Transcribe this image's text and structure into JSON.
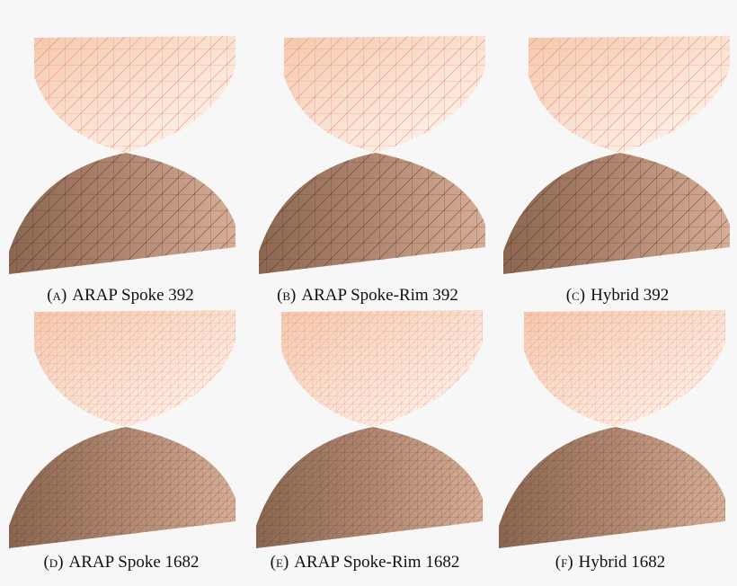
{
  "captions": [
    {
      "label": "(a)",
      "text": "ARAP Spoke 392"
    },
    {
      "label": "(b)",
      "text": "ARAP Spoke-Rim 392"
    },
    {
      "label": "(c)",
      "text": "Hybrid 392"
    },
    {
      "label": "(d)",
      "text": "ARAP Spoke 1682"
    },
    {
      "label": "(e)",
      "text": "ARAP Spoke-Rim 1682"
    },
    {
      "label": "(f)",
      "text": "Hybrid 1682"
    }
  ]
}
